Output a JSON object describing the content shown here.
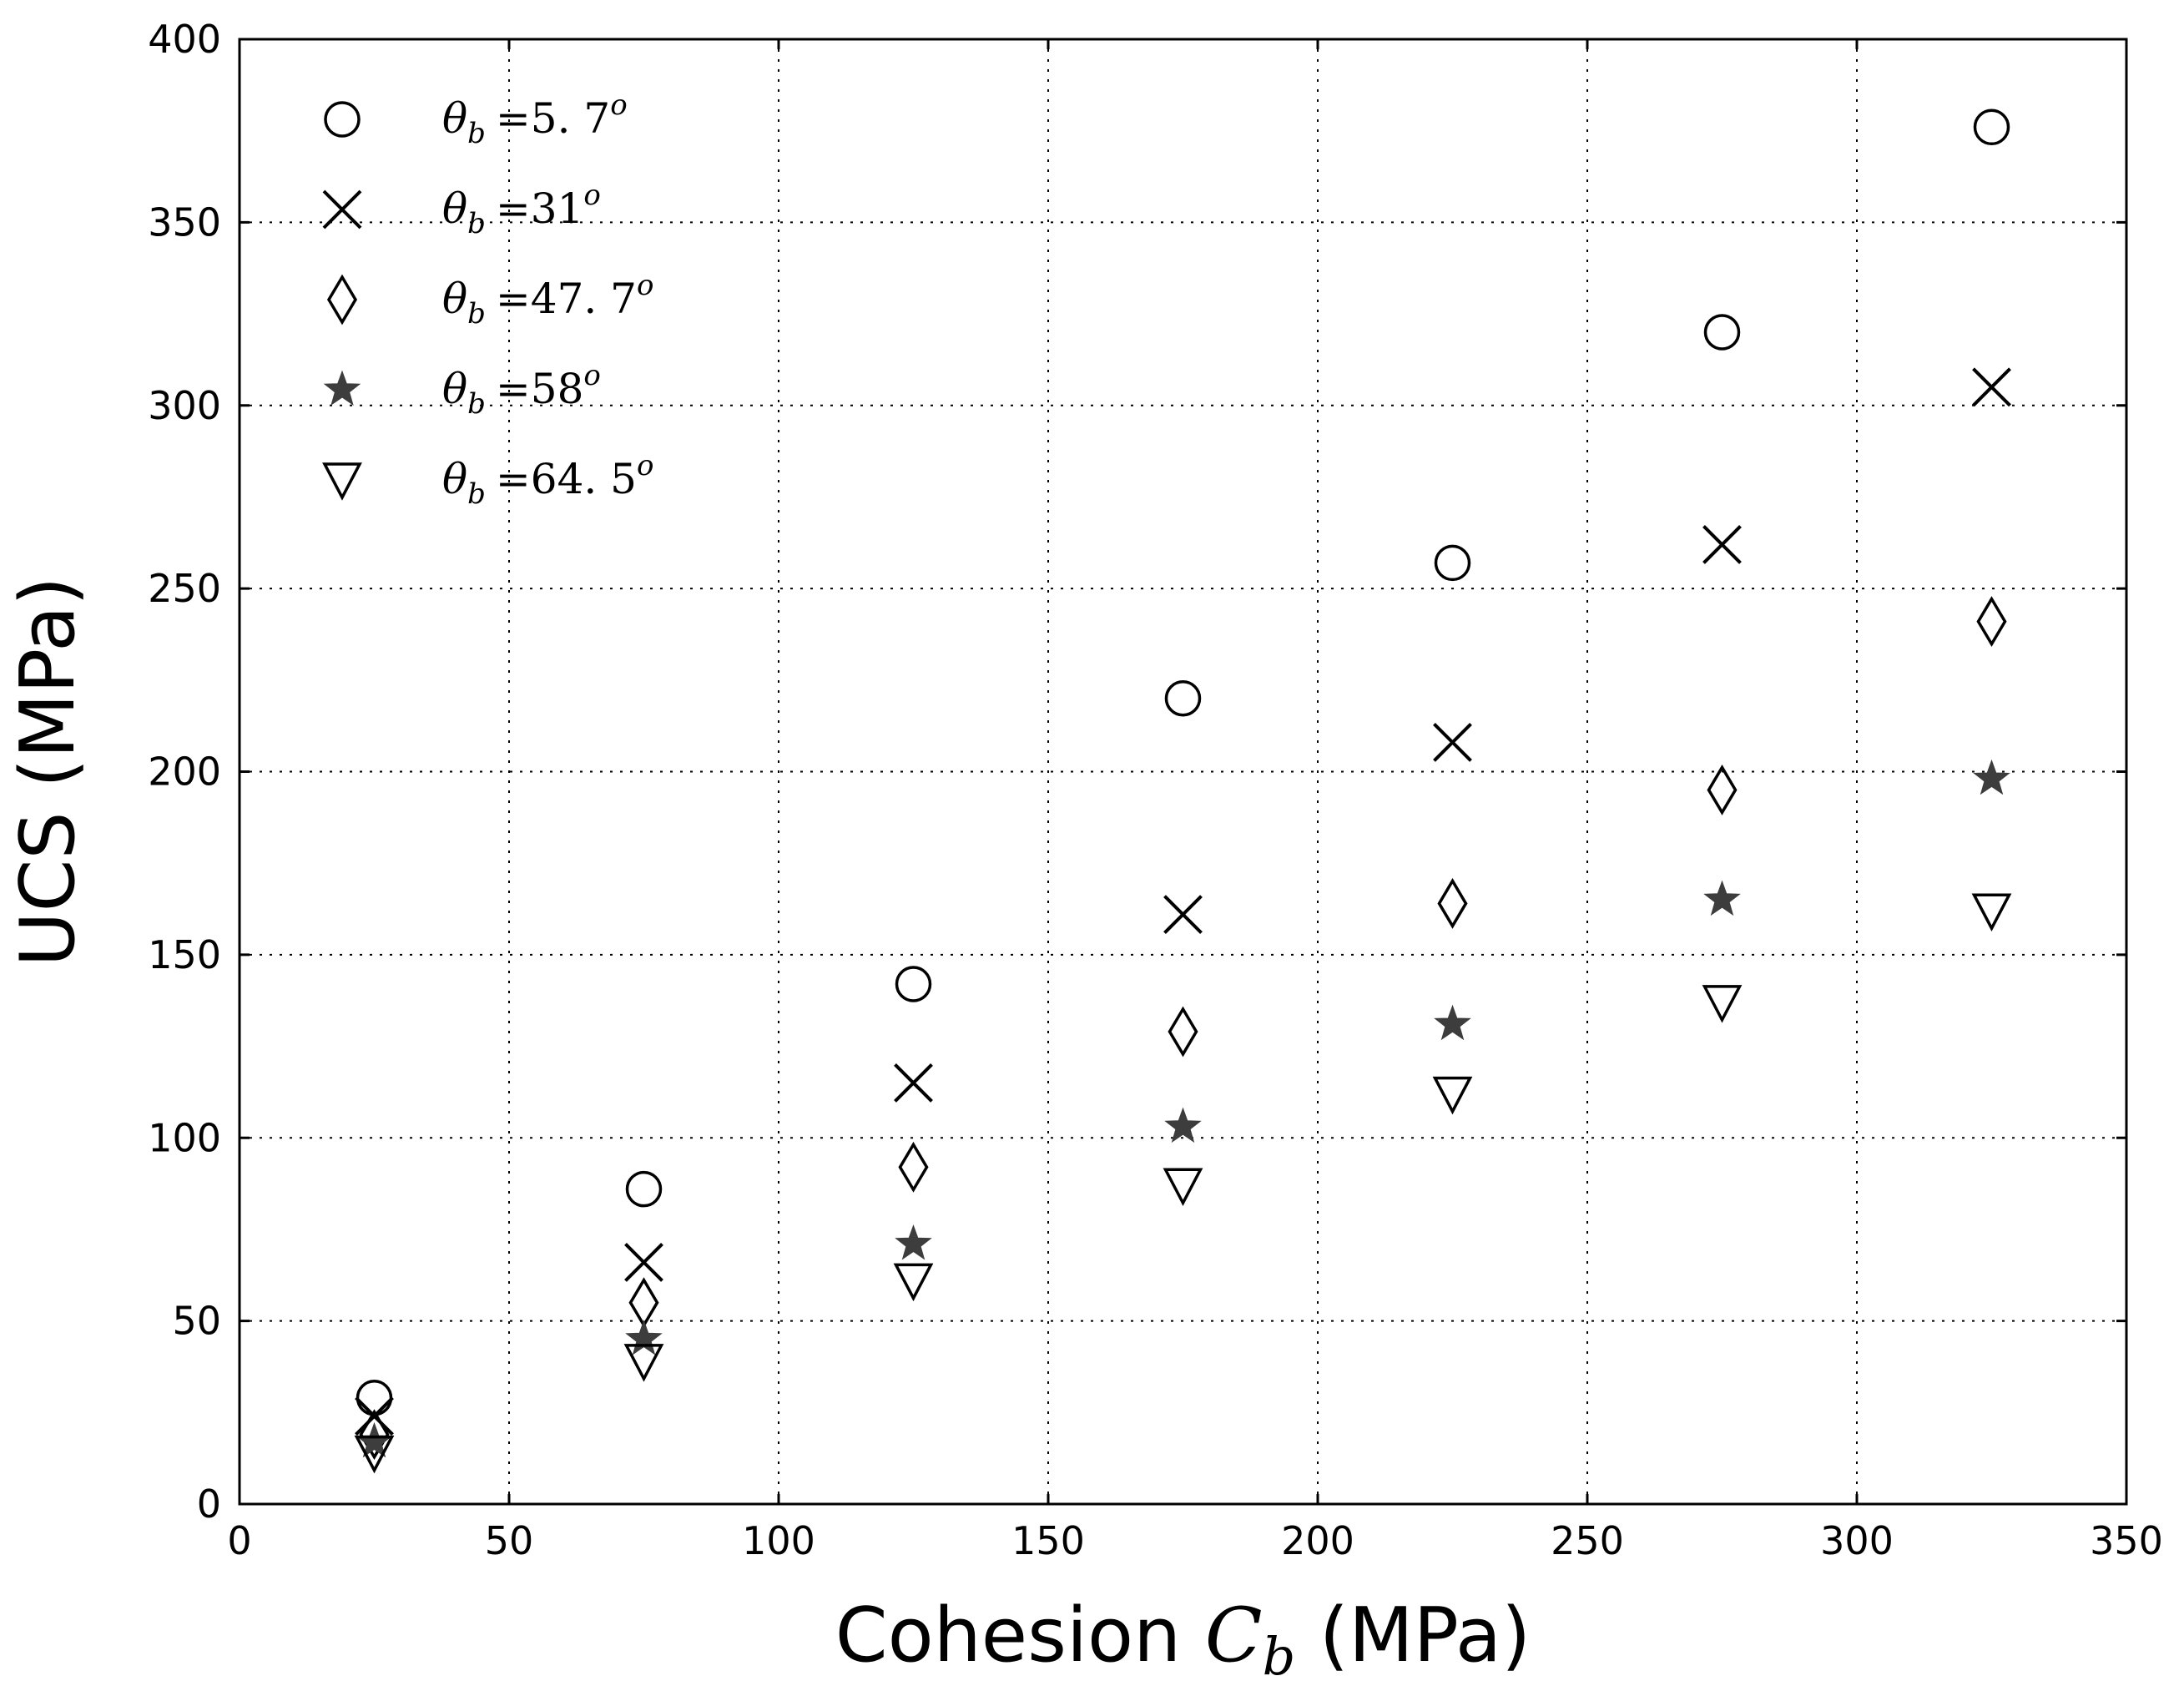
{
  "chart_data": {
    "type": "scatter",
    "title": "",
    "xlabel": {
      "prefix": "Cohesion ",
      "symbol": "C",
      "subscript": "b",
      "suffix": " (MPa)"
    },
    "ylabel": "UCS (MPa)",
    "xlim": [
      0,
      350
    ],
    "ylim": [
      0,
      400
    ],
    "x_ticks": [
      0,
      50,
      100,
      150,
      200,
      250,
      300,
      350
    ],
    "y_ticks": [
      0,
      50,
      100,
      150,
      200,
      250,
      300,
      350,
      400
    ],
    "grid": true,
    "legend_position": "top-left",
    "x": [
      25,
      75,
      125,
      175,
      225,
      275,
      325
    ],
    "series": [
      {
        "name": "θb =5. 7o",
        "symbol": "θ",
        "subscript": "b",
        "value": "=5. 7",
        "superscript": "o",
        "marker": "circle",
        "values": [
          29,
          86,
          142,
          220,
          257,
          320,
          376
        ]
      },
      {
        "name": "θb =31o",
        "symbol": "θ",
        "subscript": "b",
        "value": "=31",
        "superscript": "o",
        "marker": "x",
        "values": [
          24,
          66,
          115,
          161,
          208,
          262,
          305
        ]
      },
      {
        "name": "θb =47. 7o",
        "symbol": "θ",
        "subscript": "b",
        "value": "=47. 7",
        "superscript": "o",
        "marker": "diamond",
        "values": [
          19,
          55,
          92,
          129,
          164,
          195,
          241
        ]
      },
      {
        "name": "θb =58o",
        "symbol": "θ",
        "subscript": "b",
        "value": "=58",
        "superscript": "o",
        "marker": "star",
        "values": [
          17,
          45,
          71,
          103,
          131,
          165,
          198
        ]
      },
      {
        "name": "θb =64. 5o",
        "symbol": "θ",
        "subscript": "b",
        "value": "=64. 5",
        "superscript": "o",
        "marker": "triangle-down",
        "values": [
          14,
          39,
          61,
          87,
          112,
          137,
          162
        ]
      }
    ],
    "colors": {
      "marker_stroke": "#000000",
      "star_fill": "#3d3d3d",
      "background": "#ffffff"
    }
  }
}
